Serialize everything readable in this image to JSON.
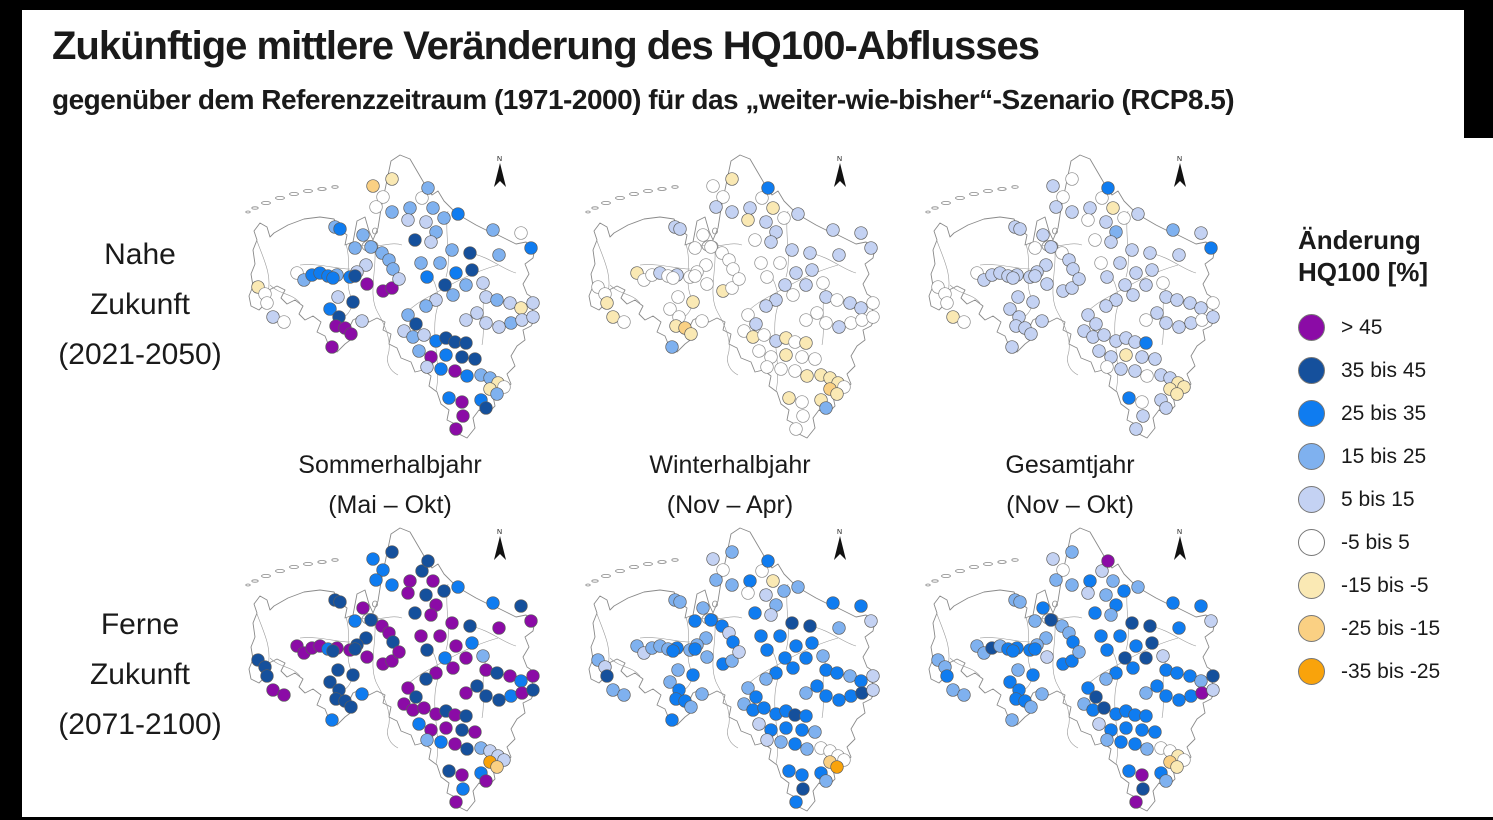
{
  "header": {
    "title": "Zukünftige mittlere Veränderung des HQ100-Abflusses",
    "subtitle": "gegenüber dem Referenzzeitraum (1971-2000) für das „weiter-wie-bisher“-Szenario (RCP8.5)"
  },
  "rows": [
    {
      "line1": "Nahe",
      "line2": "Zukunft",
      "line3": "(2021-2050)"
    },
    {
      "line1": "Ferne",
      "line2": "Zukunft",
      "line3": "(2071-2100)"
    }
  ],
  "columns": [
    {
      "line1": "Sommerhalbjahr",
      "line2": "(Mai – Okt)"
    },
    {
      "line1": "Winterhalbjahr",
      "line2": "(Nov – Apr)"
    },
    {
      "line1": "Gesamtjahr",
      "line2": "(Nov – Okt)"
    }
  ],
  "legend": {
    "title_line1": "Änderung",
    "title_line2": "HQ100 [%]",
    "items": [
      {
        "label": "> 45",
        "color": "#8B0BA6"
      },
      {
        "label": "35 bis 45",
        "color": "#15509C"
      },
      {
        "label": "25 bis 35",
        "color": "#0F7CF0"
      },
      {
        "label": "15 bis 25",
        "color": "#7FB1EF"
      },
      {
        "label": "5 bis 15",
        "color": "#C4D2F3"
      },
      {
        "label": "-5 bis 5",
        "color": "#FFFFFF"
      },
      {
        "label": "-15 bis -5",
        "color": "#FAE9B4"
      },
      {
        "label": "-25 bis -15",
        "color": "#FAD083"
      },
      {
        "label": "-35 bis -25",
        "color": "#F9A30B"
      }
    ]
  },
  "map": {
    "compass_label": "N",
    "stations": [
      [
        95,
        82
      ],
      [
        133,
        41
      ],
      [
        152,
        34
      ],
      [
        143,
        52
      ],
      [
        136,
        62
      ],
      [
        152,
        67
      ],
      [
        170,
        63
      ],
      [
        182,
        53
      ],
      [
        188,
        43
      ],
      [
        193,
        63
      ],
      [
        168,
        75
      ],
      [
        186,
        77
      ],
      [
        196,
        87
      ],
      [
        175,
        95
      ],
      [
        191,
        97
      ],
      [
        204,
        73
      ],
      [
        218,
        69
      ],
      [
        253,
        85
      ],
      [
        281,
        88
      ],
      [
        291,
        103
      ],
      [
        259,
        110
      ],
      [
        230,
        108
      ],
      [
        212,
        105
      ],
      [
        200,
        118
      ],
      [
        216,
        128
      ],
      [
        232,
        125
      ],
      [
        100,
        84
      ],
      [
        123,
        90
      ],
      [
        115,
        103
      ],
      [
        131,
        102
      ],
      [
        142,
        108
      ],
      [
        149,
        115
      ],
      [
        126,
        120
      ],
      [
        57,
        128
      ],
      [
        64,
        135
      ],
      [
        72,
        130
      ],
      [
        80,
        128
      ],
      [
        88,
        131
      ],
      [
        97,
        130
      ],
      [
        110,
        132
      ],
      [
        117,
        127
      ],
      [
        18,
        142
      ],
      [
        25,
        149
      ],
      [
        27,
        158
      ],
      [
        33,
        172
      ],
      [
        44,
        177
      ],
      [
        93,
        133
      ],
      [
        115,
        131
      ],
      [
        127,
        139
      ],
      [
        143,
        146
      ],
      [
        152,
        143
      ],
      [
        98,
        152
      ],
      [
        113,
        157
      ],
      [
        90,
        164
      ],
      [
        99,
        172
      ],
      [
        96,
        181
      ],
      [
        105,
        183
      ],
      [
        111,
        189
      ],
      [
        92,
        202
      ],
      [
        122,
        176
      ],
      [
        153,
        124
      ],
      [
        159,
        134
      ],
      [
        181,
        118
      ],
      [
        187,
        132
      ],
      [
        205,
        140
      ],
      [
        213,
        150
      ],
      [
        196,
        155
      ],
      [
        186,
        161
      ],
      [
        226,
        140
      ],
      [
        243,
        138
      ],
      [
        246,
        152
      ],
      [
        257,
        155
      ],
      [
        270,
        158
      ],
      [
        281,
        163
      ],
      [
        293,
        158
      ],
      [
        237,
        168
      ],
      [
        226,
        175
      ],
      [
        246,
        178
      ],
      [
        259,
        182
      ],
      [
        271,
        178
      ],
      [
        282,
        175
      ],
      [
        293,
        172
      ],
      [
        168,
        170
      ],
      [
        176,
        179
      ],
      [
        164,
        186
      ],
      [
        173,
        192
      ],
      [
        184,
        190
      ],
      [
        196,
        196
      ],
      [
        206,
        193
      ],
      [
        215,
        197
      ],
      [
        226,
        198
      ],
      [
        179,
        206
      ],
      [
        191,
        212
      ],
      [
        206,
        210
      ],
      [
        222,
        212
      ],
      [
        235,
        214
      ],
      [
        187,
        222
      ],
      [
        201,
        224
      ],
      [
        215,
        226
      ],
      [
        227,
        231
      ],
      [
        241,
        230
      ],
      [
        250,
        233
      ],
      [
        258,
        238
      ],
      [
        264,
        242
      ],
      [
        250,
        244
      ],
      [
        257,
        249
      ],
      [
        209,
        253
      ],
      [
        222,
        257
      ],
      [
        241,
        255
      ],
      [
        246,
        263
      ],
      [
        223,
        271
      ],
      [
        216,
        284
      ]
    ]
  },
  "maps": [
    {
      "id": "nahe-sommerhalbjahr",
      "cats": [
        3,
        7,
        6,
        5,
        5,
        3,
        3,
        5,
        3,
        3,
        4,
        4,
        3,
        1,
        4,
        3,
        2,
        3,
        5,
        2,
        3,
        1,
        3,
        3,
        2,
        1,
        2,
        3,
        3,
        3,
        3,
        3,
        4,
        5,
        3,
        2,
        2,
        2,
        3,
        2,
        4,
        6,
        5,
        5,
        4,
        5,
        2,
        1,
        0,
        0,
        0,
        4,
        1,
        2,
        1,
        0,
        0,
        0,
        0,
        4,
        3,
        4,
        3,
        2,
        1,
        3,
        4,
        3,
        3,
        4,
        4,
        3,
        4,
        6,
        4,
        4,
        4,
        4,
        4,
        3,
        4,
        4,
        3,
        1,
        4,
        3,
        4,
        2,
        1,
        1,
        1,
        3,
        0,
        2,
        1,
        1,
        4,
        2,
        0,
        2,
        3,
        3,
        6,
        5,
        6,
        3,
        2,
        0,
        2,
        1,
        0,
        0
      ]
    },
    {
      "id": "nahe-winterhalbjahr",
      "cats": [
        4,
        5,
        6,
        5,
        4,
        4,
        4,
        5,
        2,
        6,
        6,
        4,
        4,
        5,
        4,
        5,
        4,
        4,
        4,
        4,
        4,
        4,
        4,
        5,
        4,
        4,
        4,
        5,
        5,
        5,
        5,
        5,
        5,
        6,
        5,
        5,
        4,
        5,
        4,
        5,
        5,
        5,
        5,
        6,
        6,
        5,
        5,
        5,
        5,
        6,
        5,
        5,
        6,
        5,
        5,
        6,
        7,
        6,
        3,
        5,
        5,
        5,
        5,
        5,
        4,
        5,
        4,
        4,
        4,
        5,
        4,
        5,
        4,
        4,
        5,
        5,
        5,
        5,
        4,
        5,
        5,
        5,
        5,
        4,
        5,
        6,
        5,
        4,
        6,
        5,
        6,
        5,
        5,
        6,
        5,
        5,
        5,
        5,
        5,
        6,
        6,
        6,
        6,
        5,
        7,
        6,
        6,
        5,
        6,
        3,
        5,
        5
      ]
    },
    {
      "id": "nahe-gesamtjahr",
      "cats": [
        4,
        4,
        5,
        5,
        4,
        4,
        4,
        5,
        2,
        6,
        5,
        4,
        3,
        5,
        4,
        5,
        4,
        3,
        4,
        2,
        4,
        4,
        4,
        4,
        4,
        4,
        4,
        4,
        5,
        4,
        5,
        4,
        4,
        5,
        4,
        4,
        4,
        4,
        4,
        4,
        4,
        5,
        5,
        5,
        6,
        5,
        4,
        4,
        4,
        4,
        4,
        4,
        4,
        4,
        4,
        4,
        4,
        4,
        4,
        4,
        4,
        4,
        5,
        4,
        4,
        4,
        4,
        4,
        4,
        5,
        4,
        4,
        4,
        4,
        5,
        4,
        5,
        4,
        4,
        4,
        5,
        4,
        4,
        4,
        4,
        4,
        4,
        4,
        4,
        4,
        2,
        4,
        4,
        6,
        4,
        4,
        5,
        4,
        4,
        5,
        4,
        4,
        6,
        6,
        6,
        6,
        2,
        5,
        4,
        4,
        4,
        4
      ]
    },
    {
      "id": "ferne-sommerhalbjahr",
      "cats": [
        1,
        2,
        1,
        2,
        2,
        2,
        0,
        1,
        1,
        0,
        0,
        1,
        0,
        1,
        0,
        1,
        2,
        2,
        1,
        0,
        0,
        1,
        0,
        0,
        0,
        2,
        1,
        0,
        2,
        1,
        0,
        0,
        1,
        0,
        0,
        0,
        0,
        2,
        0,
        0,
        1,
        1,
        1,
        1,
        0,
        0,
        1,
        1,
        0,
        0,
        0,
        1,
        1,
        1,
        1,
        1,
        1,
        1,
        2,
        2,
        1,
        0,
        0,
        1,
        2,
        0,
        0,
        1,
        0,
        3,
        0,
        1,
        0,
        2,
        0,
        1,
        0,
        1,
        1,
        2,
        0,
        1,
        0,
        1,
        0,
        0,
        0,
        0,
        1,
        0,
        1,
        2,
        0,
        0,
        1,
        0,
        3,
        2,
        0,
        1,
        3,
        4,
        4,
        4,
        8,
        7,
        1,
        0,
        2,
        0,
        2,
        0
      ]
    },
    {
      "id": "ferne-winterhalbjahr",
      "cats": [
        3,
        4,
        3,
        5,
        3,
        3,
        2,
        5,
        2,
        6,
        5,
        4,
        3,
        2,
        4,
        3,
        3,
        2,
        2,
        4,
        3,
        1,
        1,
        2,
        2,
        2,
        3,
        3,
        2,
        2,
        2,
        4,
        3,
        3,
        4,
        3,
        3,
        3,
        2,
        3,
        3,
        3,
        4,
        1,
        3,
        3,
        2,
        2,
        3,
        2,
        3,
        3,
        2,
        3,
        2,
        2,
        2,
        3,
        2,
        3,
        2,
        4,
        2,
        2,
        2,
        2,
        2,
        3,
        2,
        3,
        2,
        2,
        3,
        2,
        4,
        2,
        3,
        2,
        2,
        2,
        1,
        4,
        3,
        2,
        3,
        2,
        2,
        2,
        2,
        1,
        2,
        4,
        2,
        2,
        2,
        3,
        4,
        3,
        2,
        3,
        5,
        5,
        5,
        5,
        7,
        8,
        2,
        2,
        2,
        3,
        1,
        2
      ]
    },
    {
      "id": "ferne-gesamtjahr",
      "cats": [
        3,
        4,
        3,
        5,
        3,
        3,
        2,
        4,
        0,
        3,
        4,
        3,
        2,
        2,
        3,
        2,
        3,
        2,
        2,
        4,
        2,
        1,
        1,
        2,
        2,
        1,
        3,
        2,
        3,
        1,
        3,
        3,
        3,
        3,
        3,
        1,
        3,
        2,
        2,
        2,
        3,
        3,
        3,
        2,
        3,
        3,
        2,
        2,
        4,
        2,
        2,
        3,
        2,
        2,
        2,
        2,
        2,
        3,
        3,
        3,
        2,
        3,
        2,
        2,
        1,
        2,
        2,
        3,
        1,
        4,
        2,
        2,
        2,
        3,
        1,
        2,
        3,
        2,
        2,
        2,
        0,
        4,
        2,
        1,
        3,
        2,
        1,
        2,
        2,
        2,
        2,
        4,
        2,
        2,
        2,
        2,
        3,
        2,
        2,
        3,
        5,
        5,
        6,
        5,
        7,
        6,
        2,
        0,
        2,
        3,
        1,
        0
      ]
    }
  ]
}
